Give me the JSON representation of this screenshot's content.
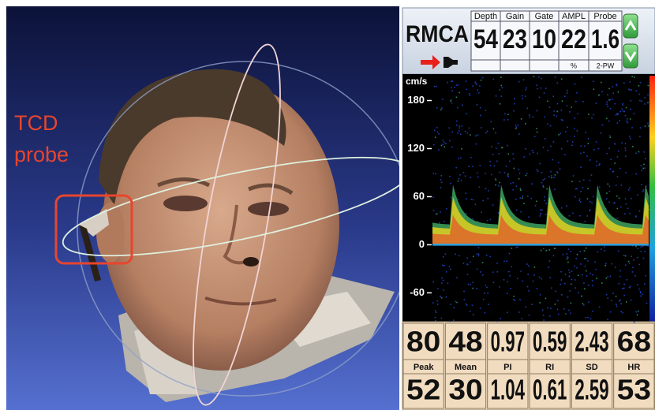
{
  "left_panel": {
    "annotation": [
      "TCD",
      "probe"
    ]
  },
  "monitor": {
    "vessel": "RMCA",
    "settings": [
      {
        "label": "Depth",
        "value": 54
      },
      {
        "label": "Gain",
        "value": 23
      },
      {
        "label": "Gate",
        "value": 10
      },
      {
        "label": "AMPL",
        "value": 22,
        "unit": "%"
      },
      {
        "label": "Probe",
        "value": 1.6,
        "unit": "2-PW"
      }
    ],
    "spectrum": {
      "unit": "cm/s",
      "ylim": [
        -96,
        211
      ],
      "yticks": [
        180,
        120,
        60,
        0,
        -60
      ]
    },
    "measurements": {
      "labels": [
        "Peak",
        "Mean",
        "PI",
        "RI",
        "SD",
        "HR"
      ],
      "row1": [
        80,
        48,
        0.97,
        0.59,
        2.43,
        68
      ],
      "row2": [
        52,
        30,
        1.04,
        0.61,
        2.59,
        53
      ]
    }
  }
}
